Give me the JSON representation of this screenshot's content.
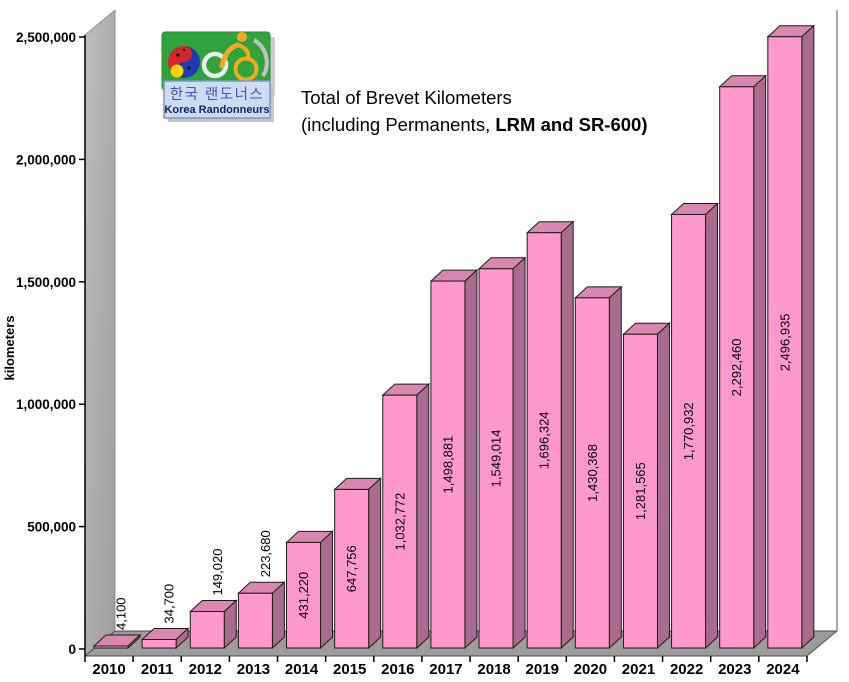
{
  "header": {
    "title_line1": "Total of Brevet Kilometers",
    "title_line2_regular": "(including Permanents, ",
    "title_line2_bold": "LRM and SR-600)"
  },
  "logo": {
    "korean_name": "한국 랜도너스",
    "english_name": "Korea Randonneurs"
  },
  "chart_data": {
    "type": "bar",
    "style": "3d-column",
    "title": "Total of Brevet Kilometers (including Permanents, LRM and SR-600)",
    "categories": [
      "2010",
      "2011",
      "2012",
      "2013",
      "2014",
      "2015",
      "2016",
      "2017",
      "2018",
      "2019",
      "2020",
      "2021",
      "2022",
      "2023",
      "2024"
    ],
    "values": [
      4100,
      34700,
      149020,
      223680,
      431220,
      647756,
      1032772,
      1498881,
      1549014,
      1696324,
      1430368,
      1281565,
      1770932,
      2292460,
      2496935
    ],
    "value_labels": [
      "4,100",
      "34,700",
      "149,020",
      "223,680",
      "431,220",
      "647,756",
      "1,032,772",
      "1,498,881",
      "1,549,014",
      "1,696,324",
      "1,430,368",
      "1,281,565",
      "1,770,932",
      "2,292,460",
      "2,496,935"
    ],
    "xlabel": "",
    "ylabel": "kilometers",
    "ylim": [
      0,
      2500000
    ],
    "ytick_interval": 500000,
    "ytick_values": [
      0,
      500000,
      1000000,
      1500000,
      2000000,
      2500000
    ],
    "ytick_labels": [
      "0",
      "500,000",
      "1,000,000",
      "1,500,000",
      "2,000,000",
      "2,500,000"
    ],
    "grid": false,
    "legend": "none",
    "colors": {
      "bar_front": "#ff99cc",
      "bar_top": "#d987b1",
      "bar_side": "#a96c90",
      "bar_outline": "#1c1c1c",
      "wall_light": "#bdbdbd",
      "wall_dark": "#9e9e9e",
      "floor": "#9c9c9c",
      "axis": "#000000",
      "label_text": "#000000"
    }
  }
}
